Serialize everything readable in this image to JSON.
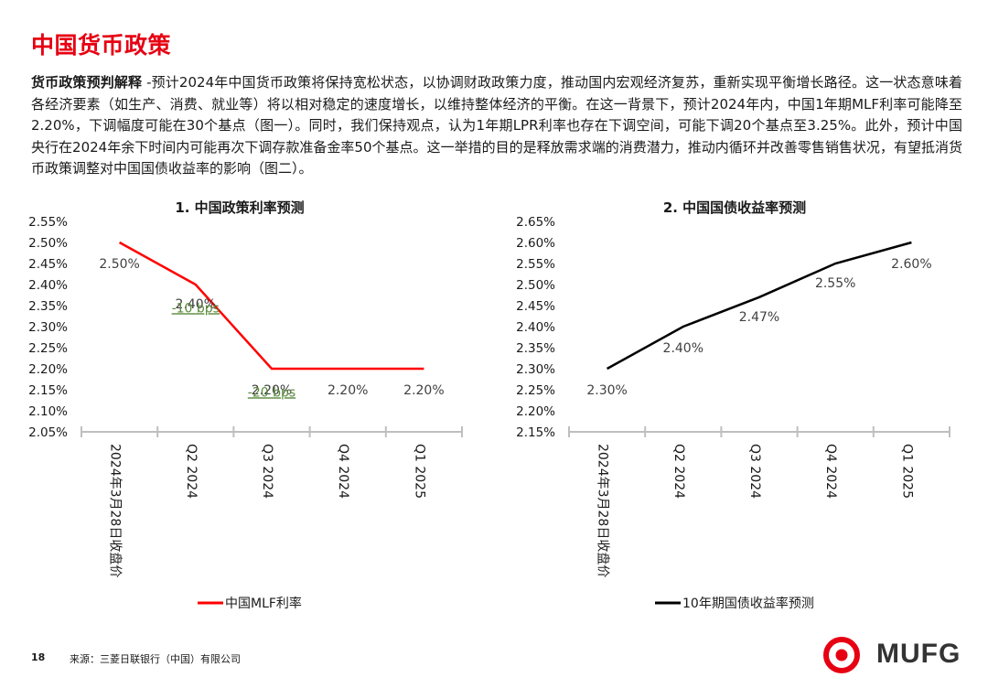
{
  "title": "中国货币政策",
  "intro": {
    "label": "货币政策预判解释",
    "text": " -预计2024年中国货币政策将保持宽松状态，以协调财政政策力度，推动国内宏观经济复苏，重新实现平衡增长路径。这一状态意味着各经济要素（如生产、消费、就业等）将以相对稳定的速度增长，以维持整体经济的平衡。在这一背景下，预计2024年内，中国1年期MLF利率可能降至2.20%，下调幅度可能在30个基点（图一）。同时，我们保持观点，认为1年期LPR利率也存在下调空间，可能下调20个基点至3.25%。此外，预计中国央行在2024年余下时间内可能再次下调存款准备金率50个基点。这一举措的目的是释放需求端的消费潜力，推动内循环并改善零售销售状况，有望抵消货币政策调整对中国国债收益率的影响（图二）。"
  },
  "chart_data": [
    {
      "type": "line",
      "title": "1. 中国政策利率预测",
      "categories": [
        "2024年3月28日收盘价",
        "Q2 2024",
        "Q3 2024",
        "Q4 2024",
        "Q1 2025"
      ],
      "series": [
        {
          "name": "中国MLF利率",
          "values": [
            2.5,
            2.4,
            2.2,
            2.2,
            2.2
          ],
          "color": "#ff0000"
        }
      ],
      "value_labels": [
        "2.50%",
        "2.40%",
        "2.20%",
        "2.20%",
        "2.20%"
      ],
      "annotations": [
        {
          "text": "-10 bps",
          "category": "Q2 2024",
          "value": 2.345,
          "color": "#5a8a3a"
        },
        {
          "text": "-20 bps",
          "category": "Q3 2024",
          "value": 2.145,
          "color": "#5a8a3a"
        }
      ],
      "yticks": [
        "2.55%",
        "2.50%",
        "2.45%",
        "2.40%",
        "2.35%",
        "2.30%",
        "2.25%",
        "2.20%",
        "2.15%",
        "2.10%",
        "2.05%"
      ],
      "ylim": [
        2.05,
        2.55
      ],
      "legend": "bottom"
    },
    {
      "type": "line",
      "title": "2. 中国国债收益率预测",
      "categories": [
        "2024年3月28日收盘价",
        "Q2 2024",
        "Q3 2024",
        "Q4 2024",
        "Q1 2025"
      ],
      "series": [
        {
          "name": "10年期国债收益率预测",
          "values": [
            2.3,
            2.4,
            2.47,
            2.55,
            2.6
          ],
          "color": "#000000"
        }
      ],
      "value_labels": [
        "2.30%",
        "2.40%",
        "2.47%",
        "2.55%",
        "2.60%"
      ],
      "annotations": [],
      "yticks": [
        "2.65%",
        "2.60%",
        "2.55%",
        "2.50%",
        "2.45%",
        "2.40%",
        "2.35%",
        "2.30%",
        "2.25%",
        "2.20%",
        "2.15%"
      ],
      "ylim": [
        2.15,
        2.65
      ],
      "legend": "bottom"
    }
  ],
  "footer": {
    "page": "18",
    "source": "来源：三菱日联银行（中国）有限公司"
  },
  "logo": {
    "text": "MUFG",
    "color": "#e60012"
  }
}
